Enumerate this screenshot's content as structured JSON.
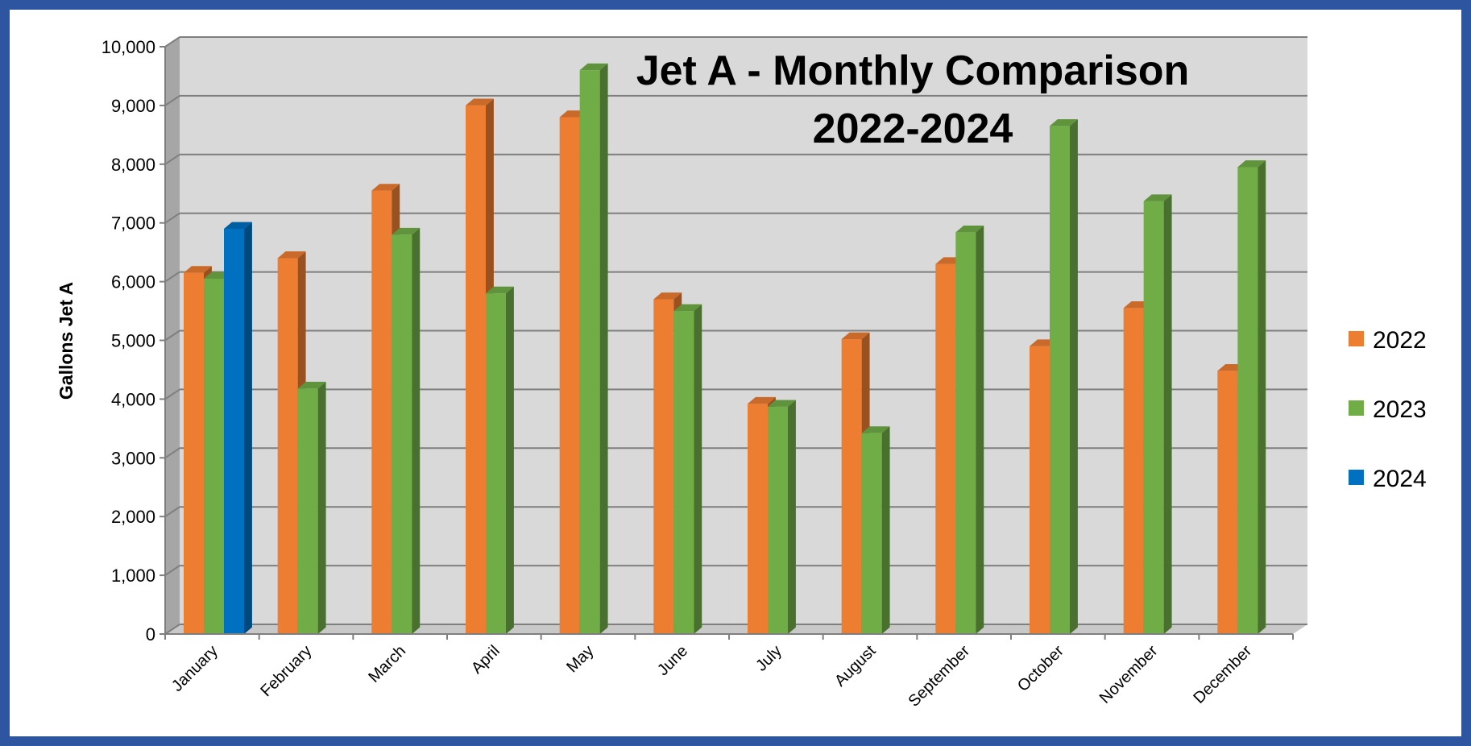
{
  "chart_data": {
    "type": "bar",
    "title": "Jet A - Monthly Comparison",
    "subtitle": "2022-2024",
    "xlabel": "",
    "ylabel": "Gallons Jet A",
    "ylim": [
      0,
      10000
    ],
    "yticks": [
      0,
      1000,
      2000,
      3000,
      4000,
      5000,
      6000,
      7000,
      8000,
      9000,
      10000
    ],
    "ytick_labels": [
      "0",
      "1,000",
      "2,000",
      "3,000",
      "4,000",
      "5,000",
      "6,000",
      "7,000",
      "8,000",
      "9,000",
      "10,000"
    ],
    "grid": true,
    "legend_position": "right",
    "categories": [
      "January",
      "February",
      "March",
      "April",
      "May",
      "June",
      "July",
      "August",
      "September",
      "October",
      "November",
      "December"
    ],
    "series": [
      {
        "name": "2022",
        "color": "#ed7d31",
        "values": [
          6150,
          6400,
          7550,
          9000,
          8800,
          5700,
          3920,
          5020,
          6300,
          4900,
          5550,
          4480
        ]
      },
      {
        "name": "2023",
        "color": "#70ad47",
        "values": [
          6050,
          4180,
          6800,
          5800,
          9600,
          5500,
          3870,
          3420,
          6840,
          8650,
          7370,
          7950
        ]
      },
      {
        "name": "2024",
        "color": "#0070c0",
        "values": [
          6900,
          null,
          null,
          null,
          null,
          null,
          null,
          null,
          null,
          null,
          null,
          null
        ]
      }
    ]
  }
}
